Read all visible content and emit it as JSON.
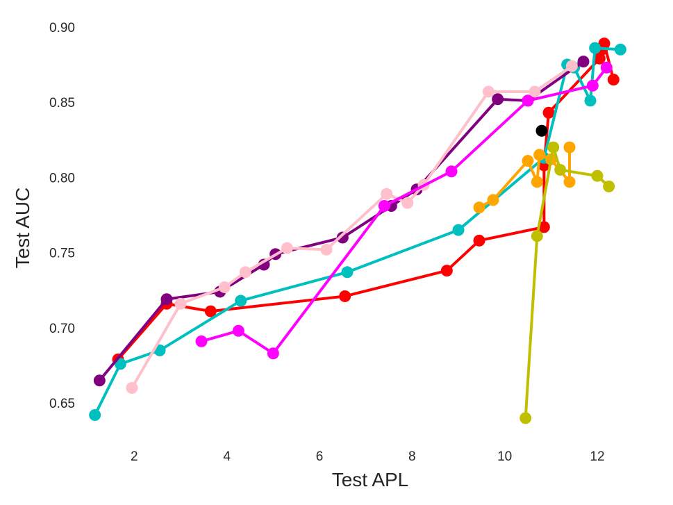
{
  "chart_data": {
    "type": "line",
    "title": "",
    "xlabel": "Test APL",
    "ylabel": "Test AUC",
    "xlim": [
      0.9,
      12.9
    ],
    "ylim": [
      0.627,
      0.905
    ],
    "xticks": [
      2,
      4,
      6,
      8,
      10,
      12
    ],
    "xtick_labels": [
      "2",
      "4",
      "6",
      "8",
      "10",
      "12"
    ],
    "yticks": [
      0.65,
      0.7,
      0.75,
      0.8,
      0.85,
      0.9
    ],
    "ytick_labels": [
      "0.65",
      "0.70",
      "0.75",
      "0.80",
      "0.85",
      "0.90"
    ],
    "grid": false,
    "legend": "none",
    "series": [
      {
        "color": "#ff0000",
        "x": [
          1.65,
          2.7,
          3.65,
          6.55,
          8.75,
          9.45,
          10.85,
          10.85,
          10.95,
          12.05,
          12.1,
          12.15,
          12.35
        ],
        "y": [
          0.679,
          0.716,
          0.711,
          0.721,
          0.738,
          0.758,
          0.767,
          0.808,
          0.843,
          0.879,
          0.885,
          0.889,
          0.865
        ]
      },
      {
        "color": "#00bfbf",
        "x": [
          1.15,
          1.7,
          2.55,
          4.3,
          6.6,
          9.0,
          10.85,
          11.35,
          11.5,
          11.85,
          11.95,
          12.5
        ],
        "y": [
          0.642,
          0.676,
          0.685,
          0.718,
          0.737,
          0.765,
          0.813,
          0.875,
          0.873,
          0.851,
          0.886,
          0.885
        ]
      },
      {
        "color": "#800080",
        "x": [
          1.25,
          2.7,
          3.85,
          4.8,
          5.05,
          6.5,
          7.55,
          8.1,
          9.85,
          10.5,
          11.7
        ],
        "y": [
          0.665,
          0.719,
          0.724,
          0.742,
          0.749,
          0.76,
          0.781,
          0.792,
          0.852,
          0.851,
          0.877
        ]
      },
      {
        "color": "#ffc0cb",
        "x": [
          1.95,
          3.0,
          3.95,
          4.4,
          5.3,
          6.15,
          7.45,
          7.9,
          8.25,
          9.65,
          10.65,
          11.45
        ],
        "y": [
          0.66,
          0.716,
          0.727,
          0.737,
          0.753,
          0.752,
          0.789,
          0.783,
          0.795,
          0.857,
          0.857,
          0.874
        ]
      },
      {
        "color": "#ff00ff",
        "x": [
          3.45,
          4.25,
          5.0,
          7.4,
          8.85,
          10.5,
          11.9,
          12.2
        ],
        "y": [
          0.691,
          0.698,
          0.683,
          0.781,
          0.804,
          0.851,
          0.861,
          0.873
        ]
      },
      {
        "color": "#ffa500",
        "x": [
          9.45,
          9.75,
          10.5,
          10.7,
          10.75,
          11.0,
          11.4,
          11.4
        ],
        "y": [
          0.78,
          0.785,
          0.811,
          0.797,
          0.815,
          0.812,
          0.797,
          0.82
        ]
      },
      {
        "color": "#bfbf00",
        "x": [
          10.45,
          10.7,
          11.05,
          11.2,
          12.0,
          12.25
        ],
        "y": [
          0.64,
          0.761,
          0.82,
          0.805,
          0.801,
          0.794
        ]
      },
      {
        "color": "#000000",
        "x": [
          10.8
        ],
        "y": [
          0.831
        ]
      }
    ]
  }
}
